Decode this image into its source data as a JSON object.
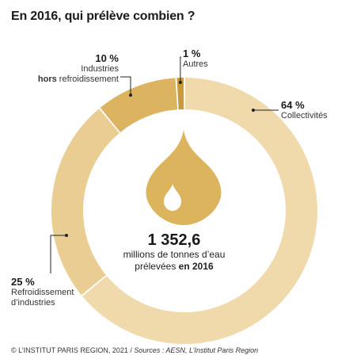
{
  "title": "En 2016, qui prélève combien ?",
  "chart_data": {
    "type": "donut",
    "slices": [
      {
        "pct_label": "64 %",
        "value": 64,
        "label_lines": [
          "Collectivités"
        ],
        "color": "#f0d9ab"
      },
      {
        "pct_label": "25 %",
        "value": 25,
        "label_lines": [
          "Refroidissement",
          "d’industries"
        ],
        "color": "#e9cd92"
      },
      {
        "pct_label": "10 %",
        "value": 10,
        "label_lines": [
          "Industries"
        ],
        "label_bold": "hors",
        "label_rest": " refroidissement",
        "color": "#dcb361"
      },
      {
        "pct_label": "1 %",
        "value": 1,
        "label_lines": [
          "Autres"
        ],
        "color": "#c89a3a"
      }
    ],
    "total": {
      "value": "1 352,6",
      "line1": "millions de tonnes d’eau",
      "line2_prefix": "prélevées",
      "line2_bold": "en 2016"
    },
    "legend": "none"
  },
  "colors": {
    "drop": "#dcb45e",
    "drop_highlight": "#ffffff",
    "leader": "#222222"
  },
  "footer": {
    "prefix": "© L’INSTITUT PARIS REGION, 2021 / ",
    "sources": "Sources : AESN, L’Institut Paris Region"
  }
}
